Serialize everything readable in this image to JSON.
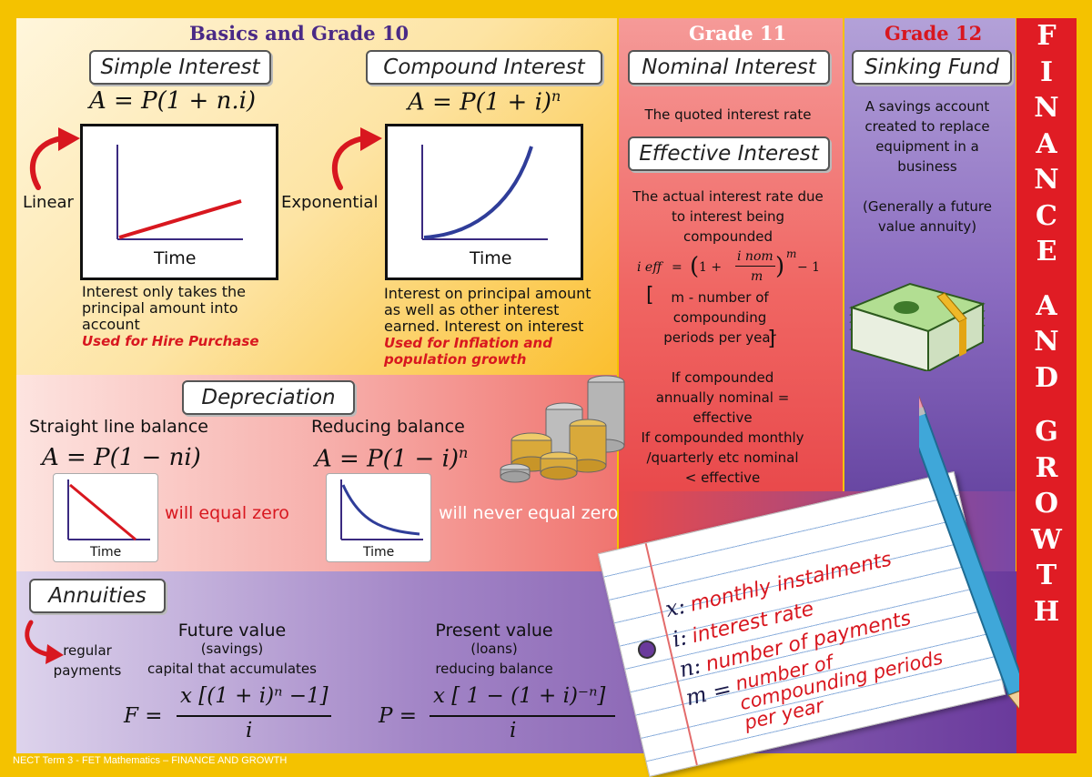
{
  "sections": {
    "basics": {
      "title": "Basics and Grade 10"
    },
    "grade11": {
      "title": "Grade 11"
    },
    "grade12": {
      "title": "Grade 12"
    }
  },
  "banner": {
    "letters": [
      "F",
      "I",
      "N",
      "A",
      "N",
      "C",
      "E",
      "",
      "A",
      "N",
      "D",
      "",
      "G",
      "R",
      "O",
      "W",
      "T",
      "H"
    ]
  },
  "simple": {
    "heading": "Simple Interest",
    "formula": "A = P(1 + n.i)",
    "side_label": "Linear",
    "axis_label": "Time",
    "desc": "Interest only takes the principal amount into account",
    "use": "Used for Hire Purchase"
  },
  "compound": {
    "heading": "Compound Interest",
    "formula_base": "A = P(1 + i)",
    "formula_exp": "n",
    "side_label": "Exponential",
    "axis_label": "Time",
    "desc": "Interest on principal amount as well as other interest earned. Interest on interest",
    "use": "Used for Inflation and population growth"
  },
  "nominal": {
    "heading": "Nominal Interest",
    "desc": "The quoted interest rate"
  },
  "effective": {
    "heading": "Effective Interest",
    "desc": "The actual interest rate due to interest being compounded",
    "formula_lhs": "i eff",
    "formula_num": "i nom",
    "formula_den": "m",
    "formula_exp": "m",
    "formula_tail": "− 1",
    "m_note": "m - number of compounding periods per year",
    "annual": "If compounded annually nominal = effective",
    "monthly": "If compounded monthly /quarterly etc nominal < effective"
  },
  "sinking": {
    "heading": "Sinking Fund",
    "desc": "A savings account created to replace equipment in a business",
    "note": "(Generally a future value annuity)"
  },
  "depreciation": {
    "heading": "Depreciation",
    "straight_label": "Straight line balance",
    "straight_formula": "A = P(1 − ni)",
    "straight_note": "will equal zero",
    "reducing_label": "Reducing balance",
    "reducing_formula_base": "A = P(1 − i)",
    "reducing_formula_exp": "n",
    "reducing_note": "will never equal zero",
    "axis_label": "Time"
  },
  "annuities": {
    "heading": "Annuities",
    "side_label": "regular payments",
    "fv_title": "Future value",
    "fv_sub": "(savings)",
    "fv_desc": "capital that accumulates",
    "fv_lhs": "F =",
    "fv_num": "x [(1 + i)ⁿ −1]",
    "fv_den": "i",
    "pv_title": "Present value",
    "pv_sub": "(loans)",
    "pv_desc": "reducing balance",
    "pv_lhs": "P =",
    "pv_num": "x [ 1 −  (1 + i)⁻ⁿ]",
    "pv_den": "i"
  },
  "note": {
    "lines": [
      {
        "var": "x:",
        "text": "monthly instalments"
      },
      {
        "var": "i:",
        "text": "interest rate"
      },
      {
        "var": "n:",
        "text": "number of payments"
      },
      {
        "var": "m =",
        "text": "number of compounding periods per year"
      }
    ]
  },
  "footer": "NECT Term 3 - FET Mathematics – FINANCE AND GROWTH",
  "colors": {
    "border": "#f4c200",
    "purple_dark": "#5b2d86",
    "red_banner": "#e01c24",
    "accent_red": "#d8171f",
    "curve_blue": "#2f3d99"
  }
}
